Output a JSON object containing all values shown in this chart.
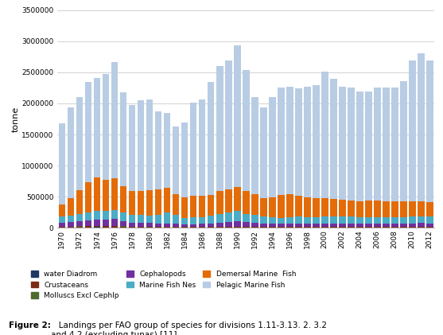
{
  "years": [
    1970,
    1971,
    1972,
    1973,
    1974,
    1975,
    1976,
    1977,
    1978,
    1979,
    1980,
    1981,
    1982,
    1983,
    1984,
    1985,
    1986,
    1987,
    1988,
    1989,
    1990,
    1991,
    1992,
    1993,
    1994,
    1995,
    1996,
    1997,
    1998,
    1999,
    2000,
    2001,
    2002,
    2003,
    2004,
    2005,
    2006,
    2007,
    2008,
    2009,
    2010,
    2011,
    2012
  ],
  "water_diadrom": [
    5000,
    6000,
    7000,
    8000,
    10000,
    9000,
    8000,
    7000,
    6000,
    6000,
    5000,
    5000,
    4000,
    3000,
    3000,
    3000,
    3000,
    4000,
    4000,
    5000,
    5000,
    4000,
    4000,
    3000,
    3000,
    3000,
    3000,
    3000,
    3000,
    3000,
    3000,
    3000,
    3000,
    3000,
    3000,
    3000,
    3000,
    3000,
    3000,
    3000,
    3000,
    3000,
    3000
  ],
  "crustaceans": [
    10000,
    12000,
    15000,
    18000,
    20000,
    18000,
    18000,
    15000,
    12000,
    12000,
    12000,
    10000,
    10000,
    8000,
    8000,
    8000,
    8000,
    10000,
    12000,
    12000,
    12000,
    10000,
    10000,
    8000,
    8000,
    8000,
    8000,
    8000,
    8000,
    8000,
    8000,
    8000,
    8000,
    8000,
    8000,
    8000,
    8000,
    8000,
    8000,
    8000,
    8000,
    8000,
    8000
  ],
  "molluscs_excl_cephalopods": [
    2000,
    2000,
    3000,
    3000,
    4000,
    4000,
    4000,
    3000,
    3000,
    3000,
    3000,
    3000,
    3000,
    3000,
    3000,
    3000,
    3000,
    3000,
    3000,
    3000,
    3000,
    3000,
    3000,
    3000,
    3000,
    3000,
    3000,
    3000,
    3000,
    3000,
    3000,
    3000,
    3000,
    3000,
    3000,
    3000,
    3000,
    3000,
    3000,
    3000,
    3000,
    3000,
    3000
  ],
  "cephalopods": [
    60000,
    70000,
    80000,
    90000,
    100000,
    100000,
    110000,
    80000,
    65000,
    65000,
    60000,
    55000,
    55000,
    50000,
    45000,
    45000,
    50000,
    55000,
    65000,
    75000,
    80000,
    70000,
    65000,
    55000,
    50000,
    48000,
    48000,
    48000,
    48000,
    52000,
    55000,
    55000,
    52000,
    52000,
    48000,
    48000,
    48000,
    52000,
    52000,
    52000,
    55000,
    60000,
    55000
  ],
  "marine_fish_nes": [
    100000,
    110000,
    120000,
    130000,
    140000,
    135000,
    150000,
    140000,
    120000,
    120000,
    120000,
    140000,
    180000,
    140000,
    100000,
    110000,
    100000,
    120000,
    140000,
    150000,
    170000,
    140000,
    120000,
    110000,
    100000,
    100000,
    110000,
    115000,
    110000,
    110000,
    110000,
    110000,
    115000,
    115000,
    110000,
    110000,
    110000,
    110000,
    110000,
    110000,
    110000,
    110000,
    110000
  ],
  "demersal_marine_fish": [
    200000,
    280000,
    380000,
    490000,
    530000,
    510000,
    510000,
    430000,
    390000,
    390000,
    410000,
    410000,
    390000,
    340000,
    330000,
    340000,
    350000,
    340000,
    370000,
    370000,
    390000,
    370000,
    340000,
    300000,
    320000,
    360000,
    370000,
    340000,
    320000,
    300000,
    300000,
    280000,
    265000,
    255000,
    255000,
    265000,
    265000,
    255000,
    255000,
    245000,
    245000,
    245000,
    235000
  ],
  "pelagic_marine_fish": [
    1300000,
    1450000,
    1500000,
    1600000,
    1600000,
    1700000,
    1870000,
    1500000,
    1380000,
    1450000,
    1450000,
    1250000,
    1200000,
    1080000,
    1200000,
    1500000,
    1550000,
    1810000,
    2000000,
    2080000,
    2270000,
    1940000,
    1560000,
    1450000,
    1620000,
    1730000,
    1720000,
    1720000,
    1770000,
    1820000,
    2030000,
    1930000,
    1820000,
    1820000,
    1760000,
    1760000,
    1820000,
    1820000,
    1820000,
    1940000,
    2270000,
    2380000,
    2280000
  ],
  "colors": {
    "water_diadrom": "#1F3864",
    "crustaceans": "#7B2C14",
    "molluscs_excl_cephalopods": "#4E6B2F",
    "cephalopods": "#7030A0",
    "marine_fish_nes": "#4BACC6",
    "demersal_marine_fish": "#E36C09",
    "pelagic_marine_fish": "#B8CCE4"
  },
  "labels": {
    "water_diadrom": "water Diadrom",
    "crustaceans": "Crustaceans",
    "molluscs_excl_cephalopods": "Molluscs Excl Cephlp",
    "cephalopods": "Cephalopods",
    "marine_fish_nes": "Marine Fish Nes",
    "demersal_marine_fish": "Demersal Marine  Fish",
    "pelagic_marine_fish": "Pelagic Marine Fish"
  },
  "ylabel": "tonne",
  "ylim": [
    0,
    3500000
  ],
  "yticks": [
    0,
    500000,
    1000000,
    1500000,
    2000000,
    2500000,
    3000000,
    3500000
  ],
  "caption_bold": "Figure 2:",
  "caption_normal": "   Landings per FAO group of species for divisions 1.11-3.13. 2. 3.2\nand 4.2 (excluding tunas) [11]."
}
